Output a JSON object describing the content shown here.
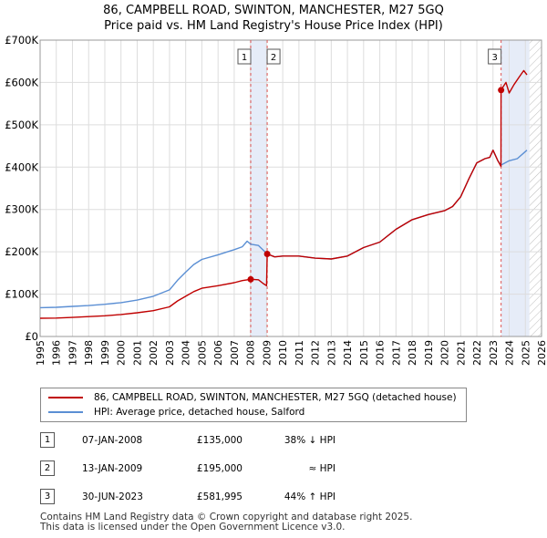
{
  "title_line1": "86, CAMPBELL ROAD, SWINTON, MANCHESTER, M27 5GQ",
  "title_line2": "Price paid vs. HM Land Registry's House Price Index (HPI)",
  "colors": {
    "property": "#c00000",
    "hpi": "#5b8fd4",
    "shade": "#e6ecf8",
    "vline": "#dd5555",
    "grid": "#dddddd",
    "hatch": "#bbbbbb"
  },
  "chart_data": {
    "type": "line",
    "title": "86, CAMPBELL ROAD, SWINTON, MANCHESTER, M27 5GQ",
    "subtitle": "Price paid vs. HM Land Registry's House Price Index (HPI)",
    "xlim": [
      1995,
      2026
    ],
    "ylim": [
      0,
      700000
    ],
    "y_ticks": [
      0,
      100000,
      200000,
      300000,
      400000,
      500000,
      600000,
      700000
    ],
    "y_tick_labels": [
      "£0",
      "£100K",
      "£200K",
      "£300K",
      "£400K",
      "£500K",
      "£600K",
      "£700K"
    ],
    "x_ticks": [
      "1995",
      "1996",
      "1997",
      "1998",
      "1999",
      "2000",
      "2001",
      "2002",
      "2003",
      "2004",
      "2005",
      "2006",
      "2007",
      "2008",
      "2009",
      "2010",
      "2011",
      "2012",
      "2013",
      "2014",
      "2015",
      "2016",
      "2017",
      "2018",
      "2019",
      "2020",
      "2021",
      "2022",
      "2023",
      "2024",
      "2025",
      "2026"
    ],
    "grid": true,
    "shaded_ranges": [
      [
        2008.02,
        2009.04
      ],
      [
        2023.5,
        2025.25
      ]
    ],
    "hatched_range": [
      2025.25,
      2026
    ],
    "series": [
      {
        "name": "86, CAMPBELL ROAD, SWINTON, MANCHESTER, M27 5GQ (detached house)",
        "x": [
          1995,
          1996,
          1997,
          1998,
          1999,
          2000,
          2001,
          2002,
          2003,
          2003.5,
          2004,
          2004.5,
          2005,
          2006,
          2007,
          2007.5,
          2008.02,
          2008.5,
          2008.8,
          2009.0,
          2009.04,
          2009.5,
          2010,
          2011,
          2012,
          2013,
          2014,
          2015,
          2016,
          2017,
          2018,
          2019,
          2020,
          2020.5,
          2021,
          2021.5,
          2022,
          2022.5,
          2022.8,
          2023.0,
          2023.3,
          2023.49,
          2023.5,
          2023.8,
          2024,
          2024.3,
          2024.6,
          2024.9,
          2025.1
        ],
        "values": [
          43000,
          43500,
          45000,
          47000,
          49000,
          52000,
          56000,
          61000,
          70000,
          84000,
          95000,
          106000,
          114000,
          120000,
          127000,
          132000,
          135000,
          134000,
          125000,
          120000,
          195000,
          188000,
          190000,
          190000,
          185000,
          183000,
          190000,
          210000,
          223000,
          253000,
          276000,
          288000,
          297000,
          307000,
          330000,
          372000,
          410000,
          420000,
          423000,
          440000,
          415000,
          402000,
          581995,
          600000,
          575000,
          595000,
          612000,
          628000,
          618000
        ]
      },
      {
        "name": "HPI: Average price, detached house, Salford",
        "x": [
          1995,
          1996,
          1997,
          1998,
          1999,
          2000,
          2001,
          2002,
          2003,
          2003.5,
          2004,
          2004.5,
          2005,
          2006,
          2007,
          2007.5,
          2007.8,
          2008.02,
          2008.5,
          2009.04,
          2009.5,
          2010,
          2011,
          2012,
          2013,
          2014,
          2015,
          2016,
          2017,
          2018,
          2019,
          2020,
          2020.5,
          2021,
          2021.5,
          2022,
          2022.5,
          2022.8,
          2023.0,
          2023.3,
          2023.5,
          2024,
          2024.5,
          2025.1
        ],
        "values": [
          68000,
          69000,
          71000,
          73000,
          76000,
          80000,
          86000,
          95000,
          110000,
          133000,
          152000,
          170000,
          182000,
          193000,
          205000,
          212000,
          225000,
          218000,
          215000,
          195000,
          188000,
          190000,
          190000,
          185000,
          183000,
          190000,
          210000,
          223000,
          253000,
          276000,
          288000,
          297000,
          307000,
          330000,
          372000,
          410000,
          420000,
          423000,
          440000,
          415000,
          405000,
          415000,
          420000,
          440000
        ]
      }
    ],
    "sales": [
      {
        "label": "1",
        "x": 2008.02,
        "value": 135000
      },
      {
        "label": "2",
        "x": 2009.04,
        "value": 195000
      },
      {
        "label": "3",
        "x": 2023.5,
        "value": 581995
      }
    ]
  },
  "legend": {
    "property": "86, CAMPBELL ROAD, SWINTON, MANCHESTER, M27 5GQ (detached house)",
    "hpi": "HPI: Average price, detached house, Salford"
  },
  "sales": [
    {
      "num": "1",
      "date": "07-JAN-2008",
      "price": "£135,000",
      "hpi": "38% ↓ HPI"
    },
    {
      "num": "2",
      "date": "13-JAN-2009",
      "price": "£195,000",
      "hpi": "≈ HPI"
    },
    {
      "num": "3",
      "date": "30-JUN-2023",
      "price": "£581,995",
      "hpi": "44% ↑ HPI"
    }
  ],
  "footer": {
    "line1": "Contains HM Land Registry data © Crown copyright and database right 2025.",
    "line2": "This data is licensed under the Open Government Licence v3.0."
  }
}
